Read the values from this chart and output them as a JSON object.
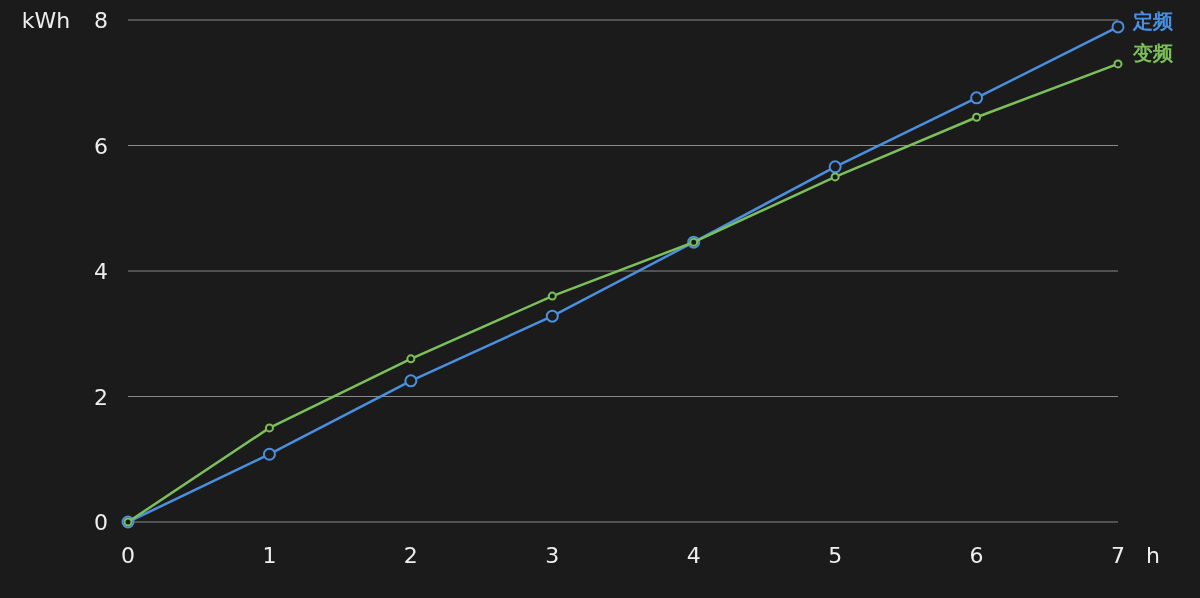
{
  "chart_data": {
    "type": "line",
    "xlabel": "h",
    "ylabel": "kWh",
    "x": [
      0,
      1,
      2,
      3,
      4,
      5,
      6,
      7
    ],
    "xlim": [
      0,
      7
    ],
    "xticks": [
      0,
      1,
      2,
      3,
      4,
      5,
      6,
      7
    ],
    "ylim": [
      0,
      8
    ],
    "yticks": [
      0,
      2,
      4,
      6,
      8
    ],
    "grid": "y",
    "marker": "circle",
    "line_style": "solid",
    "series": [
      {
        "name": "定频",
        "color": "#4a8fe0",
        "values": [
          0,
          1.08,
          2.25,
          3.28,
          4.46,
          5.66,
          6.76,
          7.89
        ]
      },
      {
        "name": "变频",
        "color": "#7cc05a",
        "values": [
          0,
          1.5,
          2.6,
          3.6,
          4.46,
          5.5,
          6.45,
          7.3
        ]
      }
    ]
  }
}
